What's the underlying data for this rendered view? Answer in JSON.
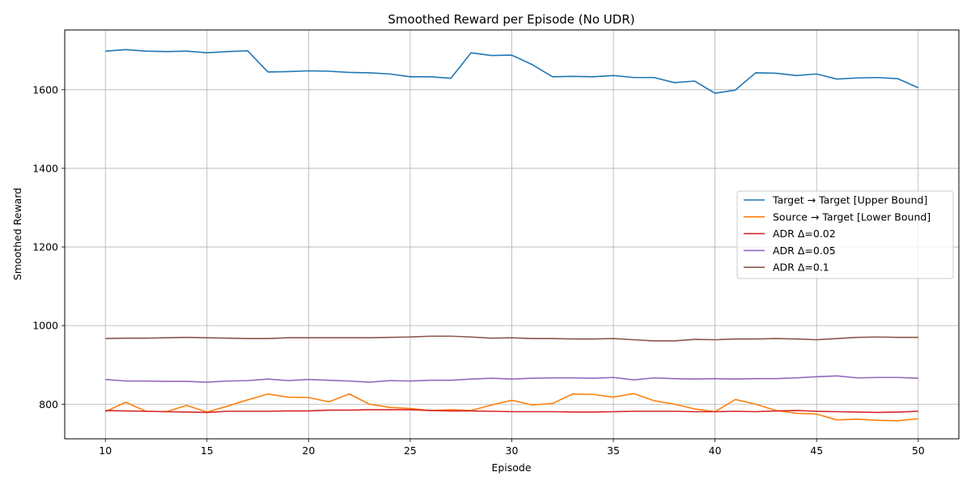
{
  "chart_data": {
    "type": "line",
    "title": "Smoothed Reward per Episode (No UDR)",
    "xlabel": "Episode",
    "ylabel": "Smoothed Reward",
    "xlim": [
      8,
      52
    ],
    "ylim": [
      712,
      1752
    ],
    "xticks": [
      10,
      15,
      20,
      25,
      30,
      35,
      40,
      45,
      50
    ],
    "yticks": [
      800,
      1000,
      1200,
      1400,
      1600
    ],
    "grid": true,
    "legend_position": "center-right",
    "x": [
      10,
      11,
      12,
      13,
      14,
      15,
      16,
      17,
      18,
      19,
      20,
      21,
      22,
      23,
      24,
      25,
      26,
      27,
      28,
      29,
      30,
      31,
      32,
      33,
      34,
      35,
      36,
      37,
      38,
      39,
      40,
      41,
      42,
      43,
      44,
      45,
      46,
      47,
      48,
      49,
      50
    ],
    "series": [
      {
        "name": "Target → Target [Upper Bound]",
        "color": "#1f77b4",
        "values": [
          1698,
          1702,
          1698,
          1697,
          1698,
          1694,
          1697,
          1699,
          1645,
          1646,
          1648,
          1647,
          1644,
          1643,
          1640,
          1633,
          1633,
          1629,
          1694,
          1687,
          1688,
          1664,
          1633,
          1634,
          1633,
          1636,
          1631,
          1631,
          1618,
          1622,
          1591,
          1599,
          1643,
          1642,
          1636,
          1640,
          1627,
          1630,
          1631,
          1628,
          1605
        ]
      },
      {
        "name": "Source → Target [Lower Bound]",
        "color": "#ff7f0e",
        "values": [
          781,
          805,
          782,
          781,
          797,
          780,
          795,
          811,
          826,
          818,
          817,
          806,
          826,
          800,
          792,
          789,
          784,
          786,
          784,
          798,
          810,
          798,
          802,
          826,
          825,
          818,
          827,
          809,
          800,
          788,
          781,
          812,
          800,
          784,
          777,
          775,
          760,
          762,
          759,
          758,
          763
        ]
      },
      {
        "name": "ADR Δ=0.02",
        "color": "#d62728",
        "values": [
          784,
          783,
          782,
          781,
          780,
          779,
          782,
          782,
          782,
          783,
          783,
          785,
          785,
          786,
          786,
          786,
          784,
          783,
          783,
          782,
          781,
          781,
          781,
          780,
          780,
          781,
          782,
          782,
          782,
          781,
          781,
          782,
          781,
          783,
          784,
          782,
          781,
          780,
          779,
          780,
          782
        ]
      },
      {
        "name": "ADR Δ=0.05",
        "color": "#9467bd",
        "values": [
          863,
          859,
          859,
          858,
          858,
          856,
          859,
          860,
          864,
          860,
          863,
          861,
          859,
          856,
          860,
          859,
          861,
          861,
          864,
          866,
          864,
          866,
          867,
          867,
          866,
          868,
          862,
          867,
          865,
          864,
          865,
          864,
          865,
          865,
          867,
          870,
          872,
          867,
          868,
          868,
          866
        ]
      },
      {
        "name": "ADR Δ=0.1",
        "color": "#8c564b",
        "values": [
          967,
          968,
          968,
          969,
          970,
          969,
          968,
          967,
          967,
          969,
          969,
          969,
          969,
          969,
          970,
          971,
          973,
          973,
          971,
          968,
          969,
          967,
          967,
          966,
          966,
          967,
          964,
          961,
          961,
          965,
          964,
          966,
          966,
          967,
          966,
          964,
          967,
          970,
          971,
          970,
          970
        ]
      }
    ]
  }
}
